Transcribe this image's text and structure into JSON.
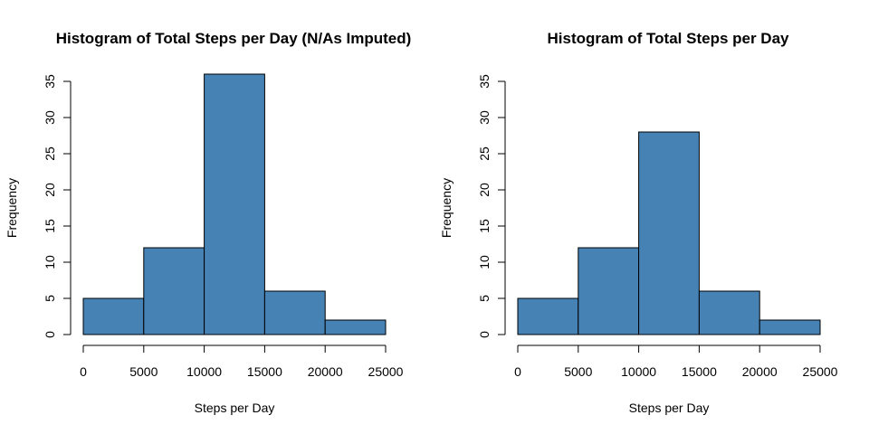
{
  "chart_data": [
    {
      "type": "bar",
      "title": "Histogram of Total Steps per Day (N/As Imputed)",
      "xlabel": "Steps per Day",
      "ylabel": "Frequency",
      "bins": [
        [
          0,
          5000
        ],
        [
          5000,
          10000
        ],
        [
          10000,
          15000
        ],
        [
          15000,
          20000
        ],
        [
          20000,
          25000
        ]
      ],
      "values": [
        5,
        12,
        36,
        6,
        2
      ],
      "xticks": [
        0,
        5000,
        10000,
        15000,
        20000,
        25000
      ],
      "yticks": [
        0,
        5,
        10,
        15,
        20,
        25,
        30,
        35
      ],
      "xlim": [
        0,
        25000
      ],
      "ylim": [
        0,
        36
      ],
      "bar_color": "#4682b4",
      "grid": false
    },
    {
      "type": "bar",
      "title": "Histogram of Total Steps per Day",
      "xlabel": "Steps per Day",
      "ylabel": "Frequency",
      "bins": [
        [
          0,
          5000
        ],
        [
          5000,
          10000
        ],
        [
          10000,
          15000
        ],
        [
          15000,
          20000
        ],
        [
          20000,
          25000
        ]
      ],
      "values": [
        5,
        12,
        28,
        6,
        2
      ],
      "xticks": [
        0,
        5000,
        10000,
        15000,
        20000,
        25000
      ],
      "yticks": [
        0,
        5,
        10,
        15,
        20,
        25,
        30,
        35
      ],
      "xlim": [
        0,
        25000
      ],
      "ylim": [
        0,
        36
      ],
      "bar_color": "#4682b4",
      "grid": false
    }
  ]
}
